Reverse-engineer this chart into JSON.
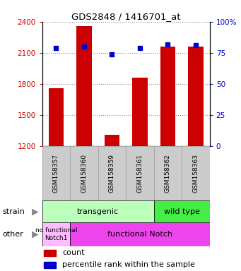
{
  "title": "GDS2848 / 1416701_at",
  "samples": [
    "GSM158357",
    "GSM158360",
    "GSM158359",
    "GSM158361",
    "GSM158362",
    "GSM158363"
  ],
  "counts": [
    1760,
    2360,
    1310,
    1860,
    2160,
    2160
  ],
  "percentiles": [
    79,
    80,
    74,
    79,
    82,
    81
  ],
  "ylim_left": [
    1200,
    2400
  ],
  "ylim_right": [
    0,
    100
  ],
  "yticks_left": [
    1200,
    1500,
    1800,
    2100,
    2400
  ],
  "yticks_right": [
    0,
    25,
    50,
    75,
    100
  ],
  "bar_color": "#cc0000",
  "dot_color": "#0000cc",
  "tick_label_color_left": "#cc0000",
  "tick_label_color_right": "#0000cc",
  "strain_transgenic_color": "#bbffbb",
  "strain_wildtype_color": "#44ee44",
  "other_nofunc_color": "#ffbbff",
  "other_func_color": "#ee44ee",
  "sample_box_color": "#cccccc",
  "sample_box_edge": "#aaaaaa"
}
